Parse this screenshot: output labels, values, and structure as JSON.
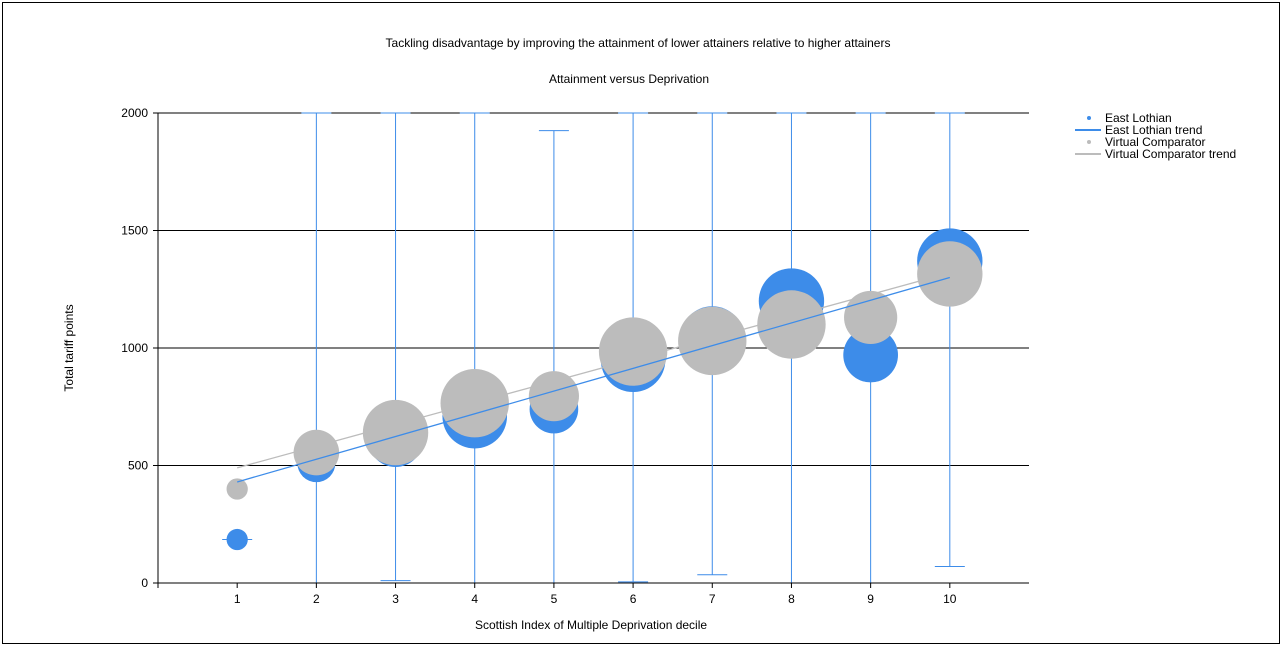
{
  "chart_data": {
    "type": "scatter",
    "title": "Tackling disadvantage by improving the attainment of lower attainers relative to higher attainers",
    "subtitle": "Attainment versus Deprivation",
    "xlabel": "Scottish Index of Multiple Deprivation decile",
    "ylabel": "Total tariff points",
    "xlim": [
      0,
      11
    ],
    "ylim": [
      0,
      2000
    ],
    "x_ticks": [
      1,
      2,
      3,
      4,
      5,
      6,
      7,
      8,
      9,
      10
    ],
    "y_ticks": [
      0,
      500,
      1000,
      1500,
      2000
    ],
    "grid": "horizontal",
    "legend_position": "top-right",
    "series": [
      {
        "name": "East Lothian",
        "kind": "bubble",
        "color": "#3d8ce9",
        "points": [
          {
            "x": 1,
            "y": 185,
            "size": 0.28,
            "low": 185,
            "high": 185
          },
          {
            "x": 2,
            "y": 510,
            "size": 0.5,
            "low": 0,
            "high": 2000
          },
          {
            "x": 3,
            "y": 610,
            "size": 0.72,
            "low": 10,
            "high": 2000
          },
          {
            "x": 4,
            "y": 710,
            "size": 0.85,
            "low": 0,
            "high": 2000
          },
          {
            "x": 5,
            "y": 740,
            "size": 0.64,
            "low": 0,
            "high": 1925
          },
          {
            "x": 6,
            "y": 950,
            "size": 0.85,
            "low": 5,
            "high": 2000
          },
          {
            "x": 7,
            "y": 1040,
            "size": 0.85,
            "low": 35,
            "high": 2000
          },
          {
            "x": 8,
            "y": 1200,
            "size": 0.86,
            "low": 0,
            "high": 2000
          },
          {
            "x": 9,
            "y": 970,
            "size": 0.72,
            "low": 0,
            "high": 2000
          },
          {
            "x": 10,
            "y": 1370,
            "size": 0.86,
            "low": 70,
            "high": 2000
          }
        ]
      },
      {
        "name": "East Lothian trend",
        "kind": "line",
        "color": "#3d8ce9",
        "x": [
          1,
          10
        ],
        "y": [
          430,
          1300
        ]
      },
      {
        "name": "Virtual Comparator",
        "kind": "bubble",
        "color": "#bcbcbc",
        "points": [
          {
            "x": 1,
            "y": 400,
            "size": 0.28
          },
          {
            "x": 2,
            "y": 555,
            "size": 0.6
          },
          {
            "x": 3,
            "y": 640,
            "size": 0.86
          },
          {
            "x": 4,
            "y": 765,
            "size": 0.9
          },
          {
            "x": 5,
            "y": 795,
            "size": 0.66
          },
          {
            "x": 6,
            "y": 985,
            "size": 0.9
          },
          {
            "x": 7,
            "y": 1030,
            "size": 0.9
          },
          {
            "x": 8,
            "y": 1100,
            "size": 0.9
          },
          {
            "x": 9,
            "y": 1130,
            "size": 0.7
          },
          {
            "x": 10,
            "y": 1315,
            "size": 0.86
          }
        ]
      },
      {
        "name": "Virtual Comparator trend",
        "kind": "line",
        "color": "#bcbcbc",
        "x": [
          1,
          10
        ],
        "y": [
          490,
          1320
        ]
      }
    ]
  }
}
